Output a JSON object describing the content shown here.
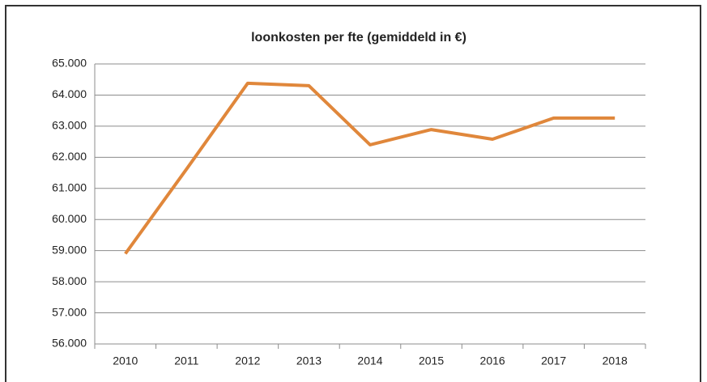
{
  "chart_data": {
    "type": "line",
    "title": "loonkosten per fte (gemiddeld in €)",
    "categories": [
      "2010",
      "2011",
      "2012",
      "2013",
      "2014",
      "2015",
      "2016",
      "2017",
      "2018"
    ],
    "series": [
      {
        "name": "loonkosten per fte",
        "color": "#e0873b",
        "values": [
          58900,
          61620,
          64380,
          64300,
          62400,
          62890,
          62580,
          63260,
          63260
        ]
      }
    ],
    "ylim": [
      56000,
      65000
    ],
    "yticks": [
      {
        "value": 56000,
        "label": "56.000"
      },
      {
        "value": 57000,
        "label": "57.000"
      },
      {
        "value": 58000,
        "label": "58.000"
      },
      {
        "value": 59000,
        "label": "59.000"
      },
      {
        "value": 60000,
        "label": "60.000"
      },
      {
        "value": 61000,
        "label": "61.000"
      },
      {
        "value": 62000,
        "label": "62.000"
      },
      {
        "value": 63000,
        "label": "63.000"
      },
      {
        "value": 64000,
        "label": "64.000"
      },
      {
        "value": 65000,
        "label": "65.000"
      }
    ],
    "grid": true
  }
}
